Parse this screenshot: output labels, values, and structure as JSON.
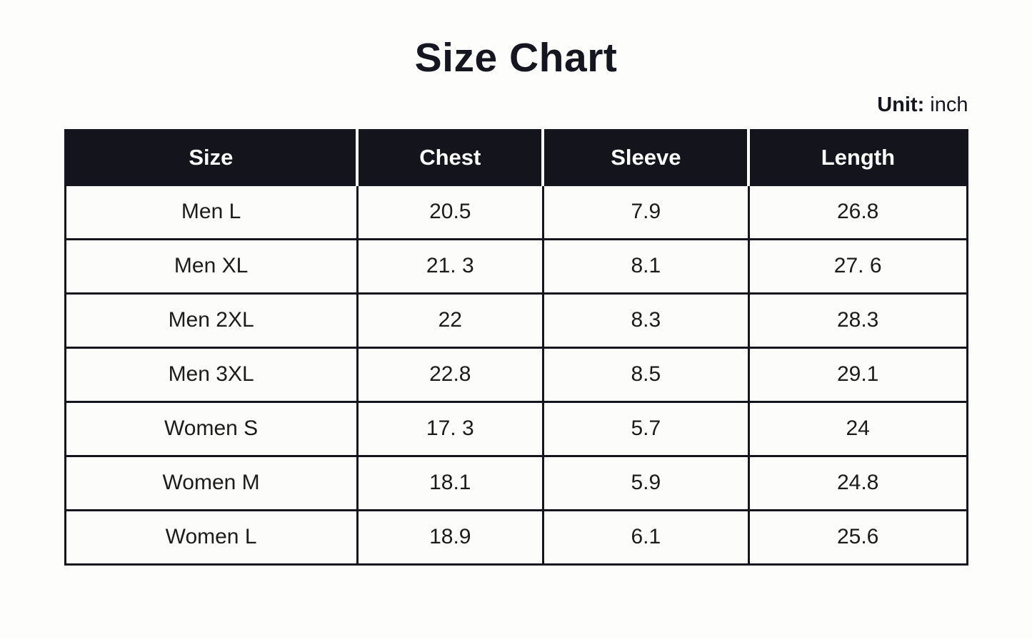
{
  "page": {
    "title": "Size Chart",
    "unit_label": "Unit:",
    "unit_value": " inch"
  },
  "colors": {
    "page_background": "#fdfdfc",
    "header_background": "#14141d",
    "header_text": "#ffffff",
    "border": "#15151e",
    "body_text": "#1c1c1c",
    "title_text": "#15161f"
  },
  "chart_data": {
    "type": "table",
    "title": "Size Chart",
    "unit": "inch",
    "columns": [
      "Size",
      "Chest",
      "Sleeve",
      "Length"
    ],
    "rows": [
      [
        "Men L",
        "20.5",
        "7.9",
        "26.8"
      ],
      [
        "Men XL",
        "21. 3",
        "8.1",
        "27. 6"
      ],
      [
        "Men 2XL",
        "22",
        "8.3",
        "28.3"
      ],
      [
        "Men 3XL",
        "22.8",
        "8.5",
        "29.1"
      ],
      [
        "Women S",
        "17. 3",
        "5.7",
        "24"
      ],
      [
        "Women M",
        "18.1",
        "5.9",
        "24.8"
      ],
      [
        "Women L",
        "18.9",
        "6.1",
        "25.6"
      ]
    ]
  }
}
